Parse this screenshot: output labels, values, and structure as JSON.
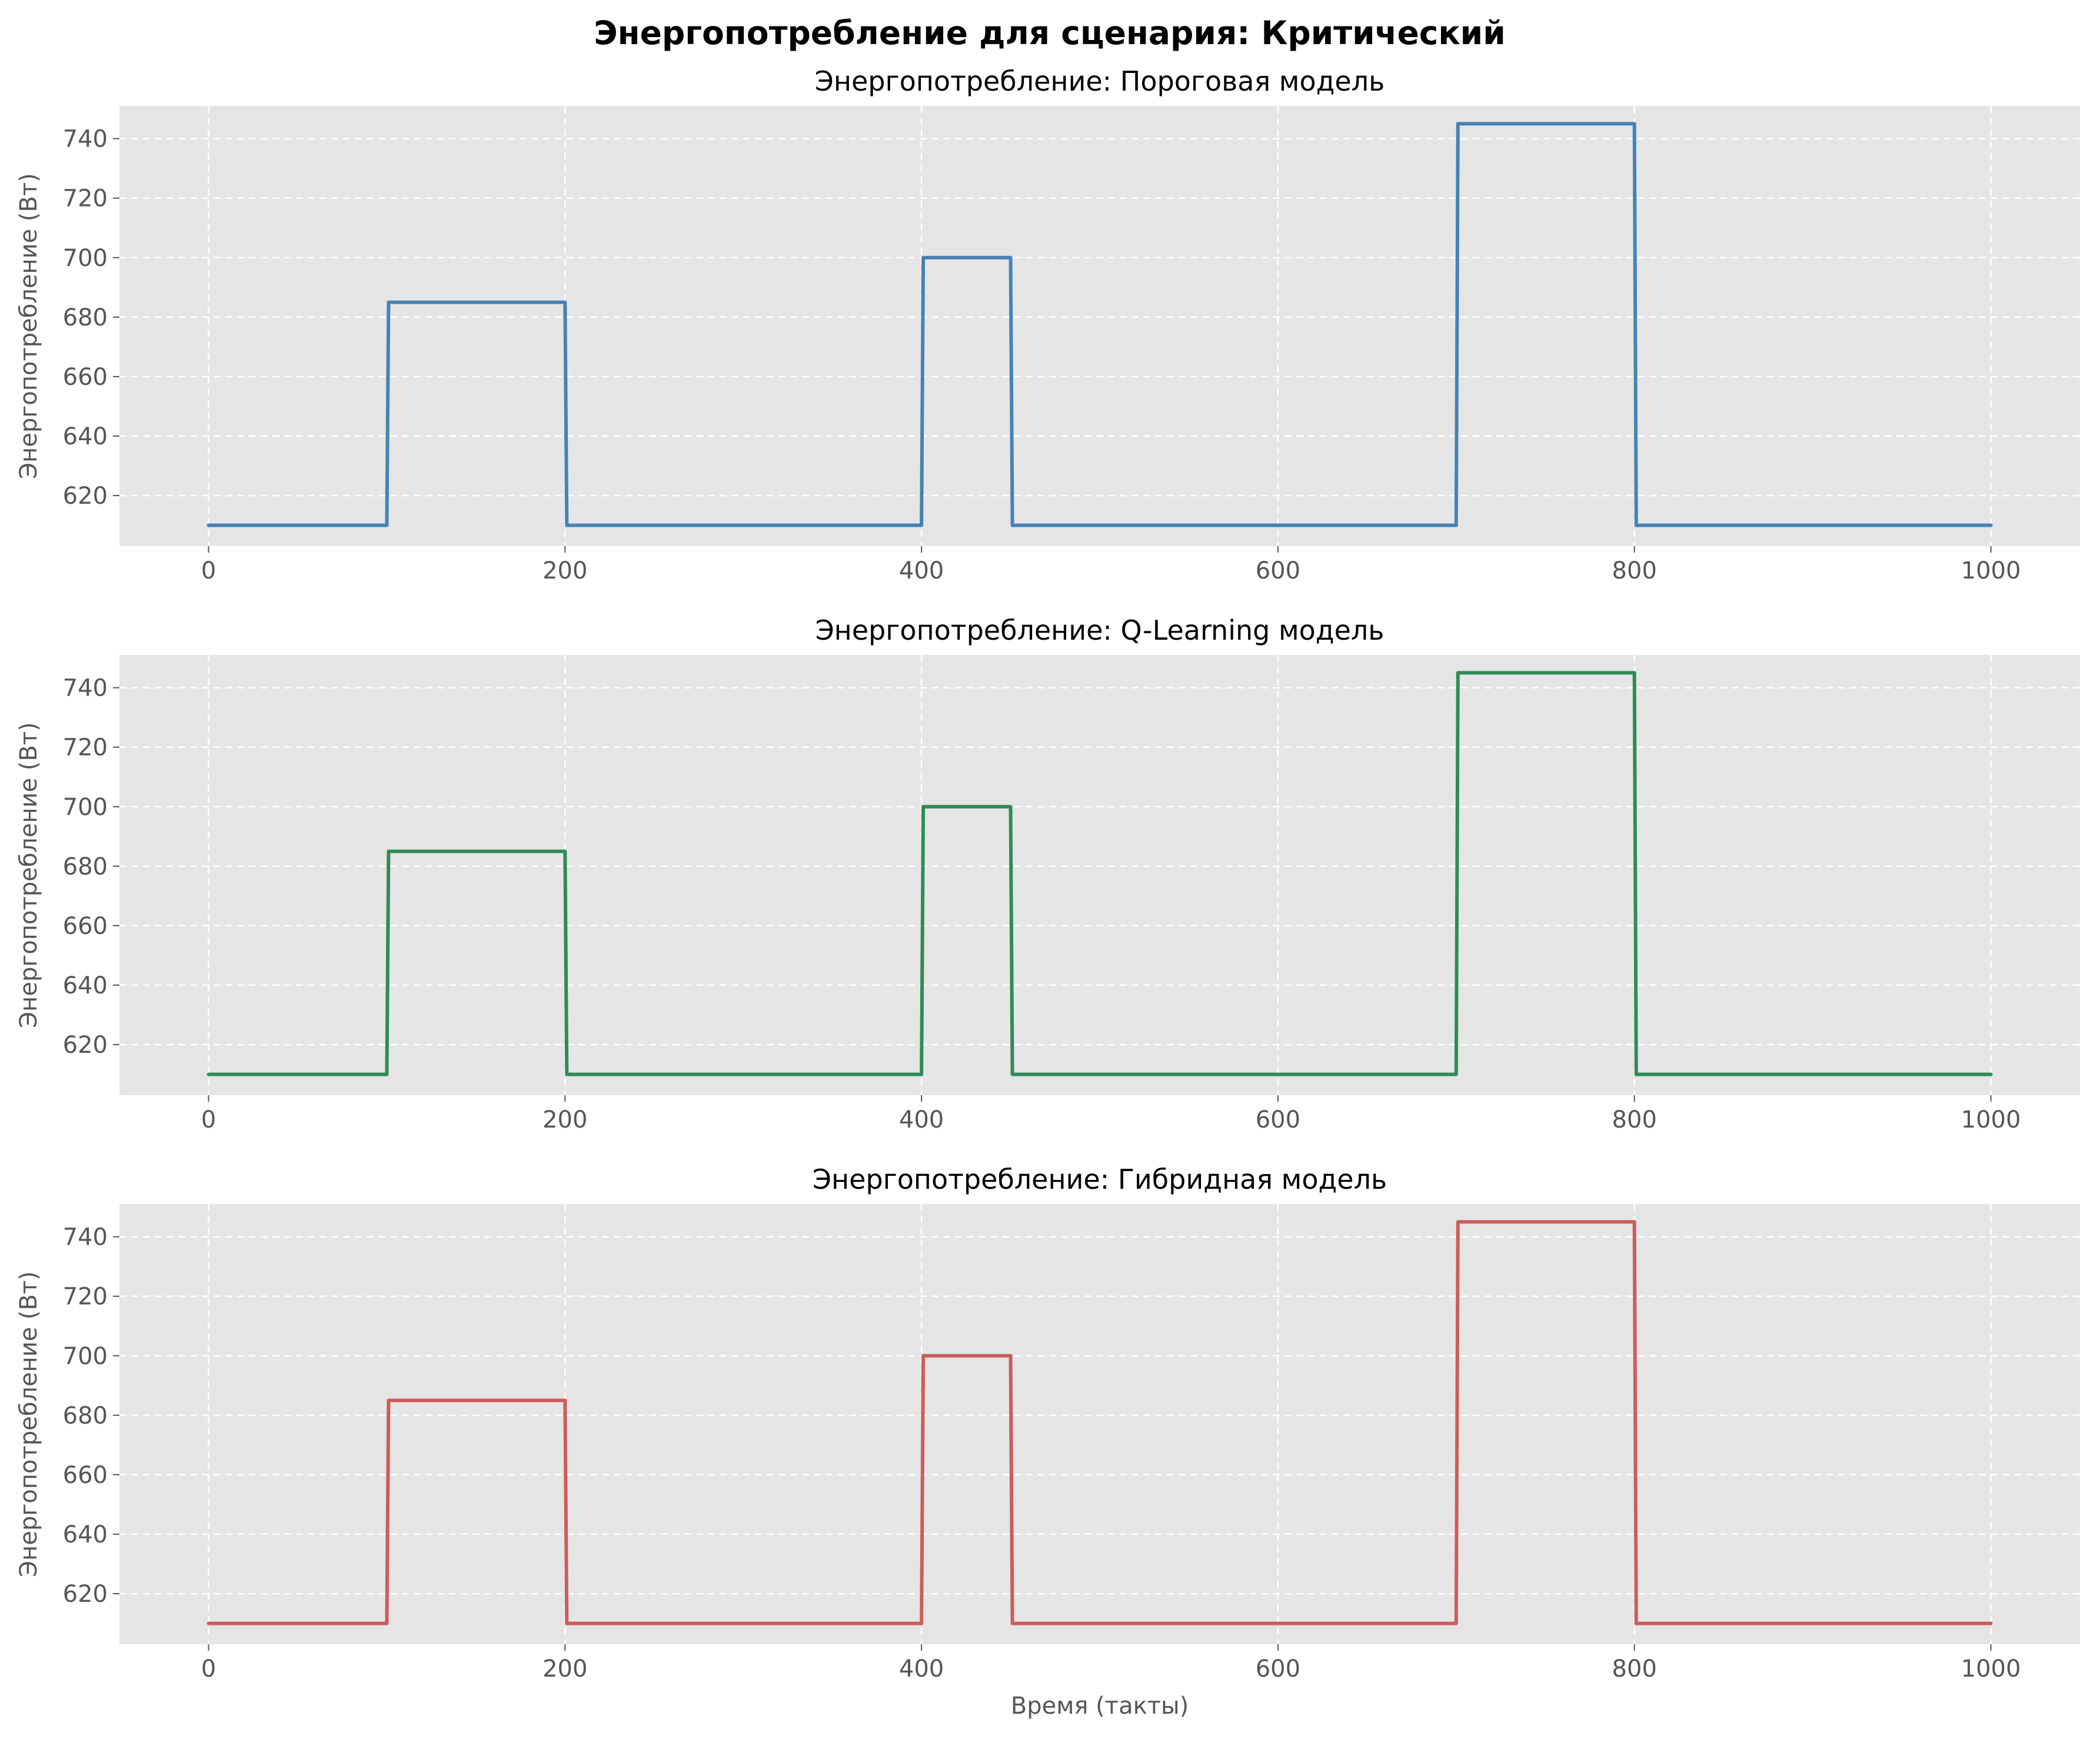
{
  "figure": {
    "title": "Энергопотребление для сценария: Критический"
  },
  "chart_data": [
    {
      "type": "line",
      "step": true,
      "title": "Энергопотребление: Пороговая модель",
      "xlabel": "",
      "ylabel": "Энергопотребление (Вт)",
      "xlim": [
        -50,
        1050
      ],
      "ylim": [
        603,
        751
      ],
      "xticks": [
        0,
        200,
        400,
        600,
        800,
        1000
      ],
      "yticks": [
        620,
        640,
        660,
        680,
        700,
        720,
        740
      ],
      "grid": true,
      "color": "#4682b4",
      "series": [
        {
          "x": [
            0,
            100,
            101,
            200,
            201,
            400,
            401,
            450,
            451,
            700,
            701,
            800,
            801,
            1000
          ],
          "y": [
            610,
            610,
            685,
            685,
            610,
            610,
            700,
            700,
            610,
            610,
            745,
            745,
            610,
            610
          ]
        }
      ]
    },
    {
      "type": "line",
      "step": true,
      "title": "Энергопотребление: Q-Learning модель",
      "xlabel": "",
      "ylabel": "Энергопотребление (Вт)",
      "xlim": [
        -50,
        1050
      ],
      "ylim": [
        603,
        751
      ],
      "xticks": [
        0,
        200,
        400,
        600,
        800,
        1000
      ],
      "yticks": [
        620,
        640,
        660,
        680,
        700,
        720,
        740
      ],
      "grid": true,
      "color": "#2e8b57",
      "series": [
        {
          "x": [
            0,
            100,
            101,
            200,
            201,
            400,
            401,
            450,
            451,
            700,
            701,
            800,
            801,
            1000
          ],
          "y": [
            610,
            610,
            685,
            685,
            610,
            610,
            700,
            700,
            610,
            610,
            745,
            745,
            610,
            610
          ]
        }
      ]
    },
    {
      "type": "line",
      "step": true,
      "title": "Энергопотребление: Гибридная модель",
      "xlabel": "Время (такты)",
      "ylabel": "Энергопотребление (Вт)",
      "xlim": [
        -50,
        1050
      ],
      "ylim": [
        603,
        751
      ],
      "xticks": [
        0,
        200,
        400,
        600,
        800,
        1000
      ],
      "yticks": [
        620,
        640,
        660,
        680,
        700,
        720,
        740
      ],
      "grid": true,
      "color": "#cd5c5c",
      "series": [
        {
          "x": [
            0,
            100,
            101,
            200,
            201,
            400,
            401,
            450,
            451,
            700,
            701,
            800,
            801,
            1000
          ],
          "y": [
            610,
            610,
            685,
            685,
            610,
            610,
            700,
            700,
            610,
            610,
            745,
            745,
            610,
            610
          ]
        }
      ]
    }
  ]
}
